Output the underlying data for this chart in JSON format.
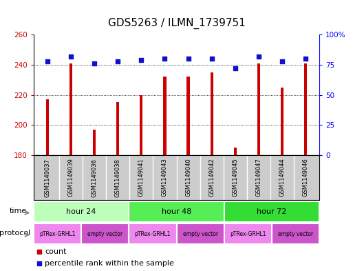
{
  "title": "GDS5263 / ILMN_1739751",
  "samples": [
    "GSM1149037",
    "GSM1149039",
    "GSM1149036",
    "GSM1149038",
    "GSM1149041",
    "GSM1149043",
    "GSM1149040",
    "GSM1149042",
    "GSM1149045",
    "GSM1149047",
    "GSM1149044",
    "GSM1149046"
  ],
  "count_values": [
    217,
    241,
    197,
    215,
    220,
    232,
    232,
    235,
    185,
    241,
    225,
    241
  ],
  "percentile_values": [
    78,
    82,
    76,
    78,
    79,
    80,
    80,
    80,
    72,
    82,
    78,
    80
  ],
  "ylim_left": [
    180,
    260
  ],
  "ylim_right": [
    0,
    100
  ],
  "yticks_left": [
    180,
    200,
    220,
    240,
    260
  ],
  "yticks_right": [
    0,
    25,
    50,
    75,
    100
  ],
  "ytick_labels_right": [
    "0",
    "25",
    "50",
    "75",
    "100%"
  ],
  "bar_color": "#cc0000",
  "dot_color": "#1111cc",
  "bar_width": 0.12,
  "time_groups": [
    {
      "label": "hour 24",
      "start": 0,
      "end": 3,
      "color": "#bbffbb"
    },
    {
      "label": "hour 48",
      "start": 4,
      "end": 7,
      "color": "#55ee55"
    },
    {
      "label": "hour 72",
      "start": 8,
      "end": 11,
      "color": "#33dd33"
    }
  ],
  "protocol_groups": [
    {
      "label": "pTRex-GRHL1",
      "start": 0,
      "end": 1,
      "color": "#ee88ee"
    },
    {
      "label": "empty vector",
      "start": 2,
      "end": 3,
      "color": "#cc55cc"
    },
    {
      "label": "pTRex-GRHL1",
      "start": 4,
      "end": 5,
      "color": "#ee88ee"
    },
    {
      "label": "empty vector",
      "start": 6,
      "end": 7,
      "color": "#cc55cc"
    },
    {
      "label": "pTRex-GRHL1",
      "start": 8,
      "end": 9,
      "color": "#ee88ee"
    },
    {
      "label": "empty vector",
      "start": 10,
      "end": 11,
      "color": "#cc55cc"
    }
  ],
  "time_label": "time",
  "protocol_label": "protocol",
  "legend_count_label": "count",
  "legend_percentile_label": "percentile rank within the sample",
  "grid_color": "#000000",
  "background_color": "#ffffff",
  "plot_bg_color": "#ffffff",
  "title_fontsize": 11,
  "tick_fontsize": 7.5,
  "label_fontsize": 8,
  "sample_label_fontsize": 6,
  "sample_bg_color": "#cccccc",
  "sample_divider_color": "#ffffff"
}
